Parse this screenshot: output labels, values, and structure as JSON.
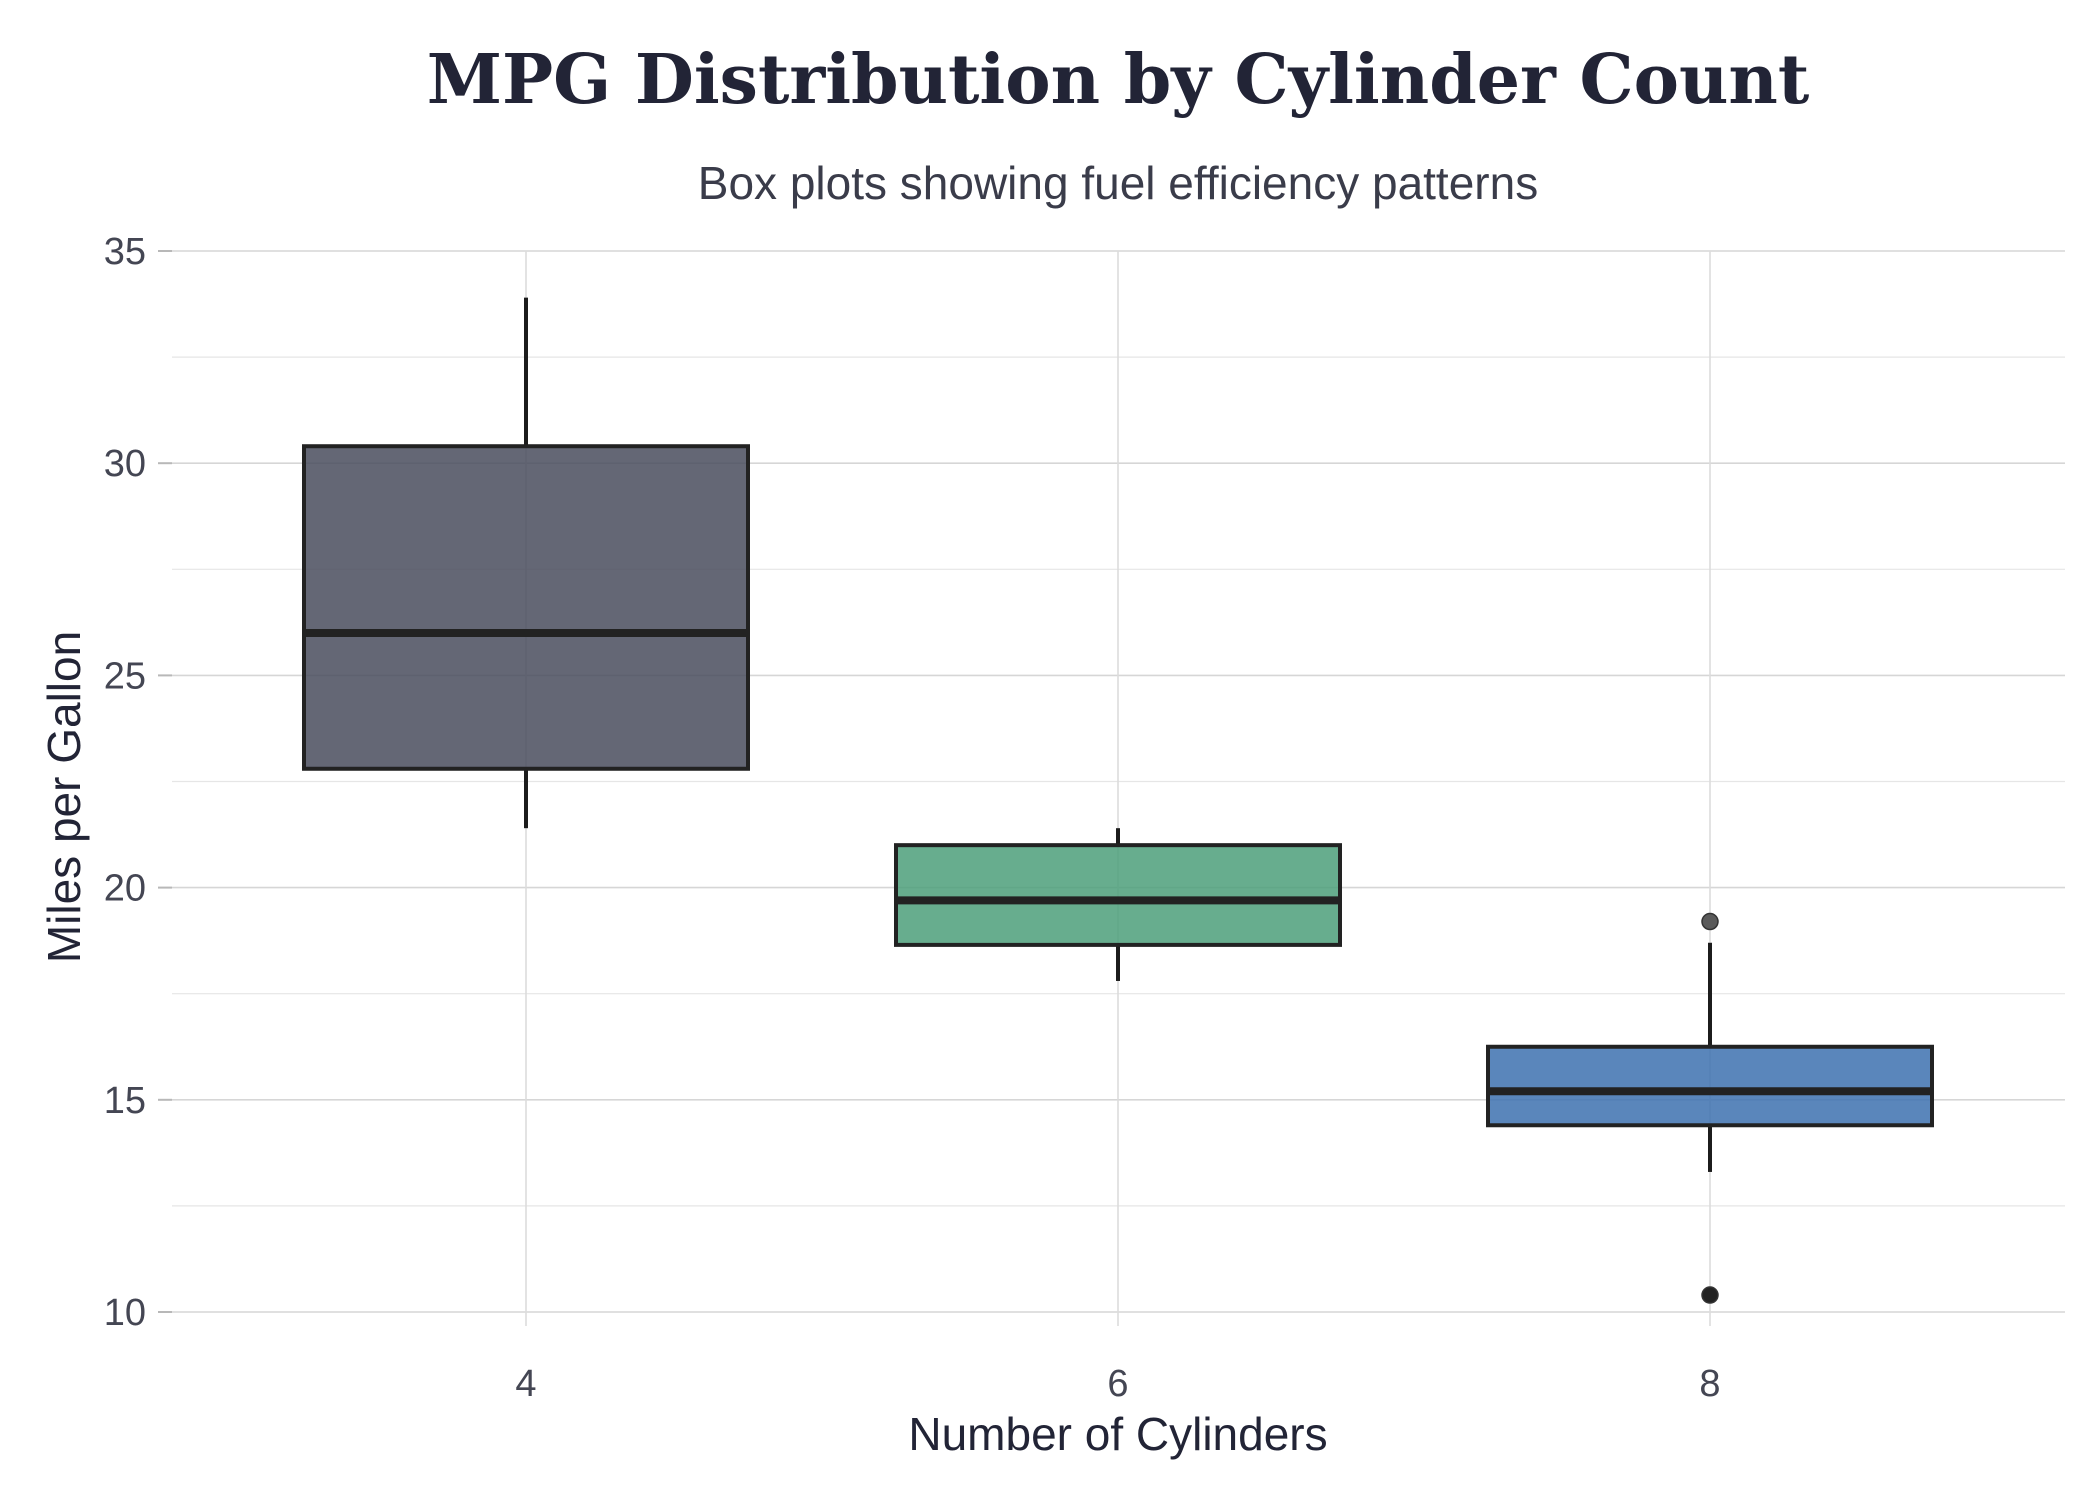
{
  "chart_data": {
    "type": "box",
    "title": "MPG Distribution by Cylinder Count",
    "subtitle": "Box plots showing fuel efficiency patterns",
    "xlabel": "Number of Cylinders",
    "ylabel": "Miles per Gallon",
    "ylim": [
      8.5,
      35
    ],
    "yticks": [
      10,
      15,
      20,
      25,
      30,
      35
    ],
    "categories": [
      "4",
      "6",
      "8"
    ],
    "grid": true,
    "series": [
      {
        "category": "4",
        "color": "#4a4e5e",
        "whisker_low": 21.4,
        "q1": 22.8,
        "median": 26.0,
        "q3": 30.4,
        "whisker_high": 33.9,
        "outliers": []
      },
      {
        "category": "6",
        "color": "#4e9f7b",
        "whisker_low": 17.8,
        "q1": 18.65,
        "median": 19.7,
        "q3": 21.0,
        "whisker_high": 21.4,
        "outliers": []
      },
      {
        "category": "8",
        "color": "#3f72b0",
        "whisker_low": 13.3,
        "q1": 14.4,
        "median": 15.2,
        "q3": 16.25,
        "whisker_high": 18.7,
        "outliers": [
          19.2,
          10.4
        ]
      }
    ]
  }
}
